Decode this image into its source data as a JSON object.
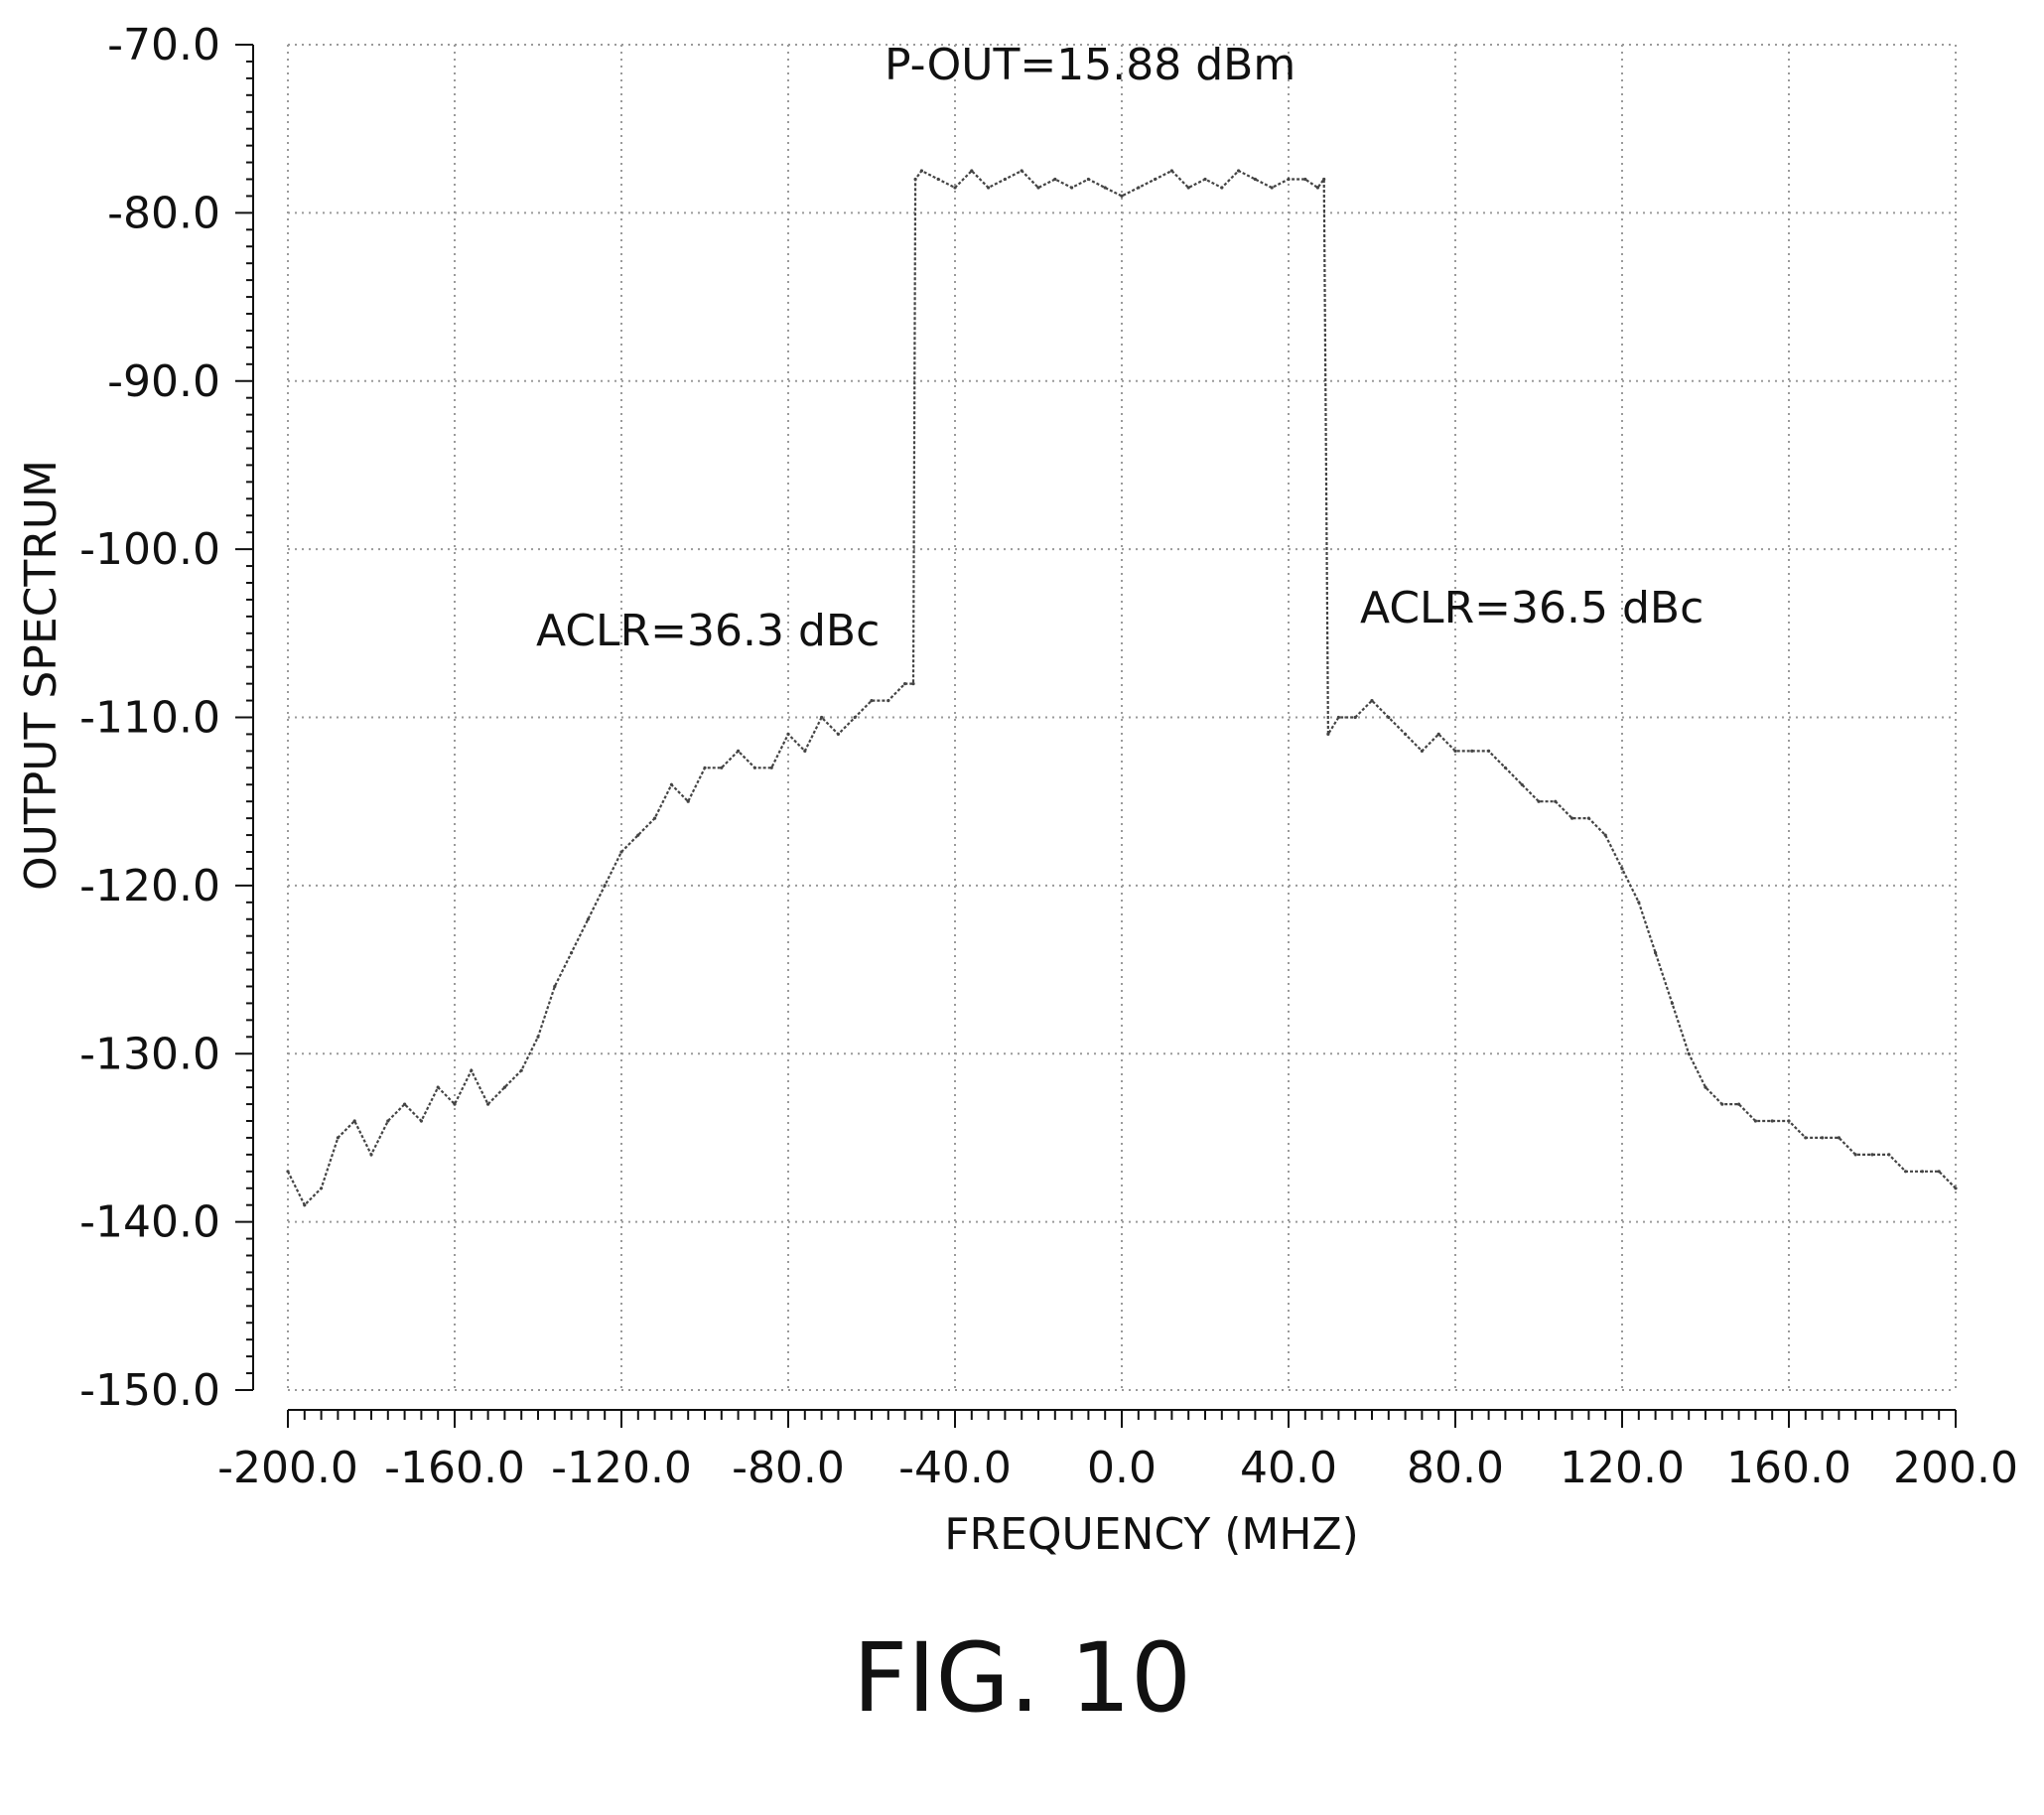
{
  "chart_data": {
    "type": "line",
    "title": "",
    "xlabel": "FREQUENCY (MHZ)",
    "ylabel": "OUTPUT SPECTRUM",
    "xlim": [
      -200.0,
      200.0
    ],
    "ylim": [
      -150.0,
      -70.0
    ],
    "x_ticks": [
      "-200.0",
      "-160.0",
      "-120.0",
      "-80.0",
      "-40.0",
      "0.0",
      "40.0",
      "80.0",
      "120.0",
      "160.0",
      "200.0"
    ],
    "y_ticks": [
      "-70.0",
      "-80.0",
      "-90.0",
      "-100.0",
      "-110.0",
      "-120.0",
      "-130.0",
      "-140.0",
      "-150.0"
    ],
    "grid": true,
    "annotations": {
      "p_out": "P-OUT=15.88 dBm",
      "aclr_left": "ACLR=36.3 dBc",
      "aclr_right": "ACLR=36.5 dBc"
    },
    "series": [
      {
        "x": [
          -200,
          -196,
          -192,
          -188,
          -184,
          -180,
          -176,
          -172,
          -168,
          -164,
          -160,
          -156,
          -152,
          -148,
          -144,
          -140,
          -136,
          -132,
          -128,
          -124,
          -120,
          -116,
          -112,
          -108,
          -104,
          -100,
          -96,
          -92,
          -88,
          -84,
          -80,
          -76,
          -72,
          -68,
          -64,
          -60,
          -56,
          -52,
          -50,
          -49.5,
          -48,
          -44,
          -40,
          -36,
          -32,
          -28,
          -24,
          -20,
          -16,
          -12,
          -8,
          -4,
          0,
          4,
          8,
          12,
          16,
          20,
          24,
          28,
          32,
          36,
          40,
          44,
          47,
          48.5,
          49.5,
          52,
          56,
          60,
          64,
          68,
          72,
          76,
          80,
          84,
          88,
          92,
          96,
          100,
          104,
          108,
          112,
          116,
          120,
          124,
          128,
          132,
          136,
          140,
          144,
          148,
          152,
          156,
          160,
          164,
          168,
          172,
          176,
          180,
          184,
          188,
          192,
          196,
          200
        ],
        "y": [
          -137,
          -139,
          -138,
          -135,
          -134,
          -136,
          -134,
          -133,
          -134,
          -132,
          -133,
          -131,
          -133,
          -132,
          -131,
          -129,
          -126,
          -124,
          -122,
          -120,
          -118,
          -117,
          -116,
          -114,
          -115,
          -113,
          -113,
          -112,
          -113,
          -113,
          -111,
          -112,
          -110,
          -111,
          -110,
          -109,
          -109,
          -108,
          -108,
          -78,
          -77.5,
          -78,
          -78.5,
          -77.5,
          -78.5,
          -78,
          -77.5,
          -78.5,
          -78,
          -78.5,
          -78,
          -78.5,
          -79,
          -78.5,
          -78,
          -77.5,
          -78.5,
          -78,
          -78.5,
          -77.5,
          -78,
          -78.5,
          -78,
          -78,
          -78.5,
          -78,
          -111,
          -110,
          -110,
          -109,
          -110,
          -111,
          -112,
          -111,
          -112,
          -112,
          -112,
          -113,
          -114,
          -115,
          -115,
          -116,
          -116,
          -117,
          -119,
          -121,
          -124,
          -127,
          -130,
          -132,
          -133,
          -133,
          -134,
          -134,
          -134,
          -135,
          -135,
          -135,
          -136,
          -136,
          -136,
          -137,
          -137,
          -137,
          -138
        ]
      }
    ]
  },
  "caption": "FIG. 10"
}
